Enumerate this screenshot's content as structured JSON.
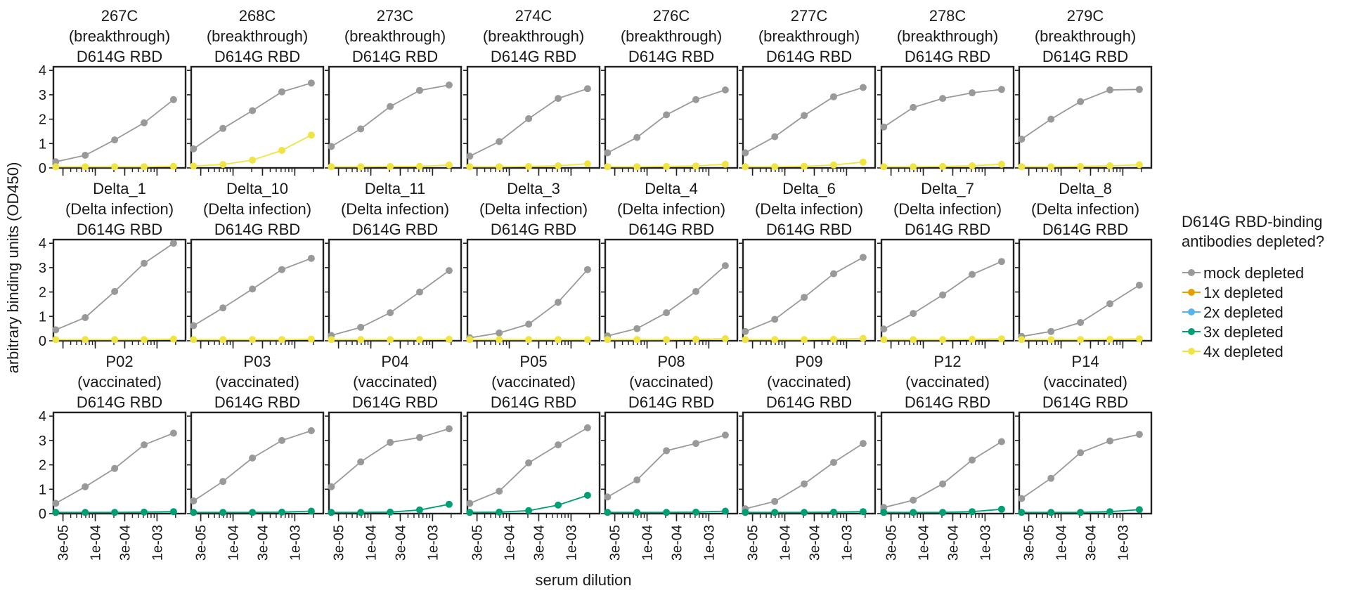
{
  "figure": {
    "ylabel": "arbitrary binding units (OD450)",
    "xlabel": "serum dilution",
    "x_ticks": [
      "3e-05",
      "1e-04",
      "3e-04",
      "1e-03"
    ],
    "y_ticks": [
      "0",
      "1",
      "2",
      "3",
      "4"
    ]
  },
  "legend": {
    "title_line1": "D614G RBD-binding",
    "title_line2": "antibodies depleted?",
    "entries": [
      {
        "label": "mock depleted",
        "color": "#999999"
      },
      {
        "label": "1x depleted",
        "color": "#E69F00"
      },
      {
        "label": "2x depleted",
        "color": "#56B4E9"
      },
      {
        "label": "3x depleted",
        "color": "#009E73"
      },
      {
        "label": "4x depleted",
        "color": "#F0E442"
      }
    ]
  },
  "chart_data": {
    "type": "line",
    "x_scale": "log",
    "xlim": [
      2.1e-05,
      0.0029
    ],
    "ylim": [
      0,
      4.15
    ],
    "dilutions": [
      2.29e-05,
      6.86e-05,
      0.000206,
      0.000617,
      0.00185
    ],
    "panels": [
      {
        "title": [
          "267C",
          "(breakthrough)",
          "D614G RBD"
        ],
        "series": [
          {
            "name": "mock depleted",
            "values": [
              0.25,
              0.52,
              1.15,
              1.85,
              2.8
            ]
          },
          {
            "name": "4x depleted",
            "values": [
              0.05,
              0.05,
              0.05,
              0.05,
              0.07
            ]
          }
        ]
      },
      {
        "title": [
          "268C",
          "(breakthrough)",
          "D614G RBD"
        ],
        "series": [
          {
            "name": "mock depleted",
            "values": [
              0.78,
              1.62,
              2.35,
              3.12,
              3.48
            ]
          },
          {
            "name": "4x depleted",
            "values": [
              0.08,
              0.14,
              0.32,
              0.72,
              1.35
            ]
          }
        ]
      },
      {
        "title": [
          "273C",
          "(breakthrough)",
          "D614G RBD"
        ],
        "series": [
          {
            "name": "mock depleted",
            "values": [
              0.88,
              1.6,
              2.52,
              3.18,
              3.4
            ]
          },
          {
            "name": "4x depleted",
            "values": [
              0.05,
              0.05,
              0.06,
              0.07,
              0.12
            ]
          }
        ]
      },
      {
        "title": [
          "274C",
          "(breakthrough)",
          "D614G RBD"
        ],
        "series": [
          {
            "name": "mock depleted",
            "values": [
              0.48,
              1.08,
              2.02,
              2.85,
              3.25
            ]
          },
          {
            "name": "4x depleted",
            "values": [
              0.05,
              0.05,
              0.06,
              0.09,
              0.17
            ]
          }
        ]
      },
      {
        "title": [
          "276C",
          "(breakthrough)",
          "D614G RBD"
        ],
        "series": [
          {
            "name": "mock depleted",
            "values": [
              0.62,
              1.25,
              2.18,
              2.8,
              3.2
            ]
          },
          {
            "name": "4x depleted",
            "values": [
              0.05,
              0.05,
              0.06,
              0.08,
              0.15
            ]
          }
        ]
      },
      {
        "title": [
          "277C",
          "(breakthrough)",
          "D614G RBD"
        ],
        "series": [
          {
            "name": "mock depleted",
            "values": [
              0.62,
              1.28,
              2.15,
              2.92,
              3.3
            ]
          },
          {
            "name": "4x depleted",
            "values": [
              0.05,
              0.05,
              0.07,
              0.12,
              0.24
            ]
          }
        ]
      },
      {
        "title": [
          "278C",
          "(breakthrough)",
          "D614G RBD"
        ],
        "series": [
          {
            "name": "mock depleted",
            "values": [
              1.68,
              2.48,
              2.85,
              3.08,
              3.22
            ]
          },
          {
            "name": "4x depleted",
            "values": [
              0.05,
              0.05,
              0.06,
              0.09,
              0.15
            ]
          }
        ]
      },
      {
        "title": [
          "279C",
          "(breakthrough)",
          "D614G RBD"
        ],
        "series": [
          {
            "name": "mock depleted",
            "values": [
              1.18,
              2.0,
              2.72,
              3.2,
              3.22
            ]
          },
          {
            "name": "4x depleted",
            "values": [
              0.05,
              0.05,
              0.06,
              0.09,
              0.13
            ]
          }
        ]
      },
      {
        "title": [
          "Delta_1",
          "(Delta infection)",
          "D614G RBD"
        ],
        "series": [
          {
            "name": "mock depleted",
            "values": [
              0.45,
              0.95,
              2.02,
              3.18,
              4.0
            ]
          },
          {
            "name": "4x depleted",
            "values": [
              0.05,
              0.05,
              0.05,
              0.05,
              0.07
            ]
          }
        ]
      },
      {
        "title": [
          "Delta_10",
          "(Delta infection)",
          "D614G RBD"
        ],
        "series": [
          {
            "name": "mock depleted",
            "values": [
              0.62,
              1.35,
              2.12,
              2.92,
              3.38
            ]
          },
          {
            "name": "4x depleted",
            "values": [
              0.05,
              0.05,
              0.05,
              0.05,
              0.07
            ]
          }
        ]
      },
      {
        "title": [
          "Delta_11",
          "(Delta infection)",
          "D614G RBD"
        ],
        "series": [
          {
            "name": "mock depleted",
            "values": [
              0.22,
              0.55,
              1.15,
              2.0,
              2.88
            ]
          },
          {
            "name": "4x depleted",
            "values": [
              0.05,
              0.05,
              0.05,
              0.05,
              0.06
            ]
          }
        ]
      },
      {
        "title": [
          "Delta_3",
          "(Delta infection)",
          "D614G RBD"
        ],
        "series": [
          {
            "name": "mock depleted",
            "values": [
              0.12,
              0.32,
              0.68,
              1.58,
              2.92
            ]
          },
          {
            "name": "4x depleted",
            "values": [
              0.05,
              0.05,
              0.05,
              0.05,
              0.05
            ]
          }
        ]
      },
      {
        "title": [
          "Delta_4",
          "(Delta infection)",
          "D614G RBD"
        ],
        "series": [
          {
            "name": "mock depleted",
            "values": [
              0.2,
              0.5,
              1.15,
              2.02,
              3.08
            ]
          },
          {
            "name": "4x depleted",
            "values": [
              0.05,
              0.05,
              0.05,
              0.06,
              0.09
            ]
          }
        ]
      },
      {
        "title": [
          "Delta_6",
          "(Delta infection)",
          "D614G RBD"
        ],
        "series": [
          {
            "name": "mock depleted",
            "values": [
              0.38,
              0.88,
              1.78,
              2.75,
              3.42
            ]
          },
          {
            "name": "4x depleted",
            "values": [
              0.05,
              0.05,
              0.05,
              0.06,
              0.1
            ]
          }
        ]
      },
      {
        "title": [
          "Delta_7",
          "(Delta infection)",
          "D614G RBD"
        ],
        "series": [
          {
            "name": "mock depleted",
            "values": [
              0.48,
              1.12,
              1.88,
              2.72,
              3.25
            ]
          },
          {
            "name": "4x depleted",
            "values": [
              0.05,
              0.05,
              0.05,
              0.06,
              0.08
            ]
          }
        ]
      },
      {
        "title": [
          "Delta_8",
          "(Delta infection)",
          "D614G RBD"
        ],
        "series": [
          {
            "name": "mock depleted",
            "values": [
              0.18,
              0.38,
              0.75,
              1.52,
              2.28
            ]
          },
          {
            "name": "4x depleted",
            "values": [
              0.05,
              0.05,
              0.05,
              0.06,
              0.08
            ]
          }
        ]
      },
      {
        "title": [
          "P02",
          "(vaccinated)",
          "D614G RBD"
        ],
        "series": [
          {
            "name": "mock depleted",
            "values": [
              0.42,
              1.1,
              1.85,
              2.82,
              3.3
            ]
          },
          {
            "name": "3x depleted",
            "values": [
              0.05,
              0.05,
              0.05,
              0.06,
              0.08
            ]
          }
        ]
      },
      {
        "title": [
          "P03",
          "(vaccinated)",
          "D614G RBD"
        ],
        "series": [
          {
            "name": "mock depleted",
            "values": [
              0.52,
              1.32,
              2.28,
              3.0,
              3.4
            ]
          },
          {
            "name": "3x depleted",
            "values": [
              0.05,
              0.05,
              0.05,
              0.06,
              0.1
            ]
          }
        ]
      },
      {
        "title": [
          "P04",
          "(vaccinated)",
          "D614G RBD"
        ],
        "series": [
          {
            "name": "mock depleted",
            "values": [
              1.1,
              2.12,
              2.92,
              3.12,
              3.48
            ]
          },
          {
            "name": "3x depleted",
            "values": [
              0.05,
              0.05,
              0.06,
              0.15,
              0.38
            ]
          }
        ]
      },
      {
        "title": [
          "P05",
          "(vaccinated)",
          "D614G RBD"
        ],
        "series": [
          {
            "name": "mock depleted",
            "values": [
              0.42,
              0.92,
              2.08,
              2.82,
              3.52
            ]
          },
          {
            "name": "3x depleted",
            "values": [
              0.05,
              0.06,
              0.12,
              0.35,
              0.75
            ]
          }
        ]
      },
      {
        "title": [
          "P08",
          "(vaccinated)",
          "D614G RBD"
        ],
        "series": [
          {
            "name": "mock depleted",
            "values": [
              0.68,
              1.38,
              2.58,
              2.88,
              3.22
            ]
          },
          {
            "name": "3x depleted",
            "values": [
              0.05,
              0.05,
              0.05,
              0.06,
              0.1
            ]
          }
        ]
      },
      {
        "title": [
          "P09",
          "(vaccinated)",
          "D614G RBD"
        ],
        "series": [
          {
            "name": "mock depleted",
            "values": [
              0.2,
              0.5,
              1.22,
              2.1,
              2.88
            ]
          },
          {
            "name": "3x depleted",
            "values": [
              0.05,
              0.05,
              0.05,
              0.06,
              0.08
            ]
          }
        ]
      },
      {
        "title": [
          "P12",
          "(vaccinated)",
          "D614G RBD"
        ],
        "series": [
          {
            "name": "mock depleted",
            "values": [
              0.25,
              0.55,
              1.22,
              2.2,
              2.95
            ]
          },
          {
            "name": "3x depleted",
            "values": [
              0.05,
              0.05,
              0.05,
              0.08,
              0.18
            ]
          }
        ]
      },
      {
        "title": [
          "P14",
          "(vaccinated)",
          "D614G RBD"
        ],
        "series": [
          {
            "name": "mock depleted",
            "values": [
              0.62,
              1.45,
              2.5,
              2.98,
              3.25
            ]
          },
          {
            "name": "3x depleted",
            "values": [
              0.05,
              0.05,
              0.05,
              0.08,
              0.16
            ]
          }
        ]
      }
    ]
  }
}
